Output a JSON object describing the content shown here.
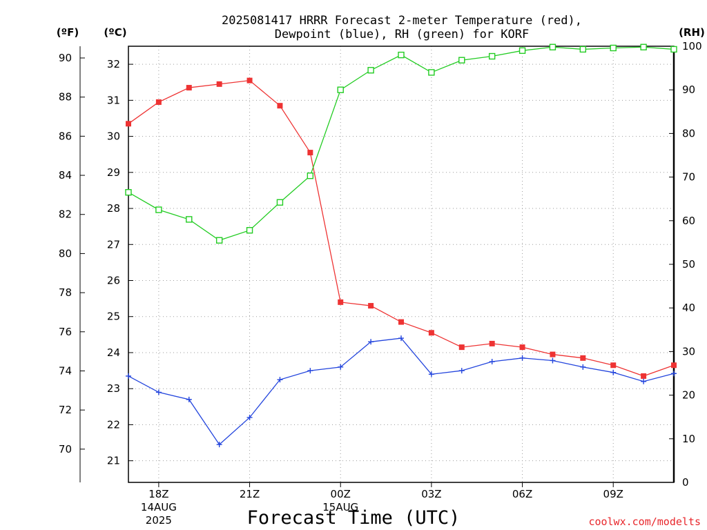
{
  "chart_data": {
    "type": "line",
    "title": [
      "2025081417 HRRR Forecast 2-meter Temperature (red),",
      "Dewpoint (blue), RH (green) for KORF"
    ],
    "xlabel": "Forecast Time (UTC)",
    "units": {
      "fahrenheit": "(ºF)",
      "celsius": "(ºC)",
      "rh": "(RH)"
    },
    "credit": "coolwx.com/modelts",
    "x_hours": [
      17,
      18,
      19,
      20,
      21,
      22,
      23,
      24,
      25,
      26,
      27,
      28,
      29,
      30,
      31,
      32,
      33,
      34,
      35
    ],
    "x_ticks": [
      {
        "hour": 18,
        "lines": [
          "18Z",
          "14AUG",
          "2025"
        ]
      },
      {
        "hour": 21,
        "lines": [
          "21Z"
        ]
      },
      {
        "hour": 24,
        "lines": [
          "00Z",
          "15AUG"
        ]
      },
      {
        "hour": 27,
        "lines": [
          "03Z"
        ]
      },
      {
        "hour": 30,
        "lines": [
          "06Z"
        ]
      },
      {
        "hour": 33,
        "lines": [
          "09Z"
        ]
      }
    ],
    "fahrenheit_axis": {
      "ticks": [
        70,
        72,
        74,
        76,
        78,
        80,
        82,
        84,
        86,
        88,
        90
      ],
      "range": [
        68.3,
        90.6
      ]
    },
    "celsius_axis": {
      "ticks": [
        21,
        22,
        23,
        24,
        25,
        26,
        27,
        28,
        29,
        30,
        31,
        32
      ],
      "range": [
        20.4,
        32.5
      ]
    },
    "rh_axis": {
      "ticks": [
        0,
        10,
        20,
        30,
        40,
        50,
        60,
        70,
        80,
        90,
        100
      ],
      "range": [
        0,
        100
      ]
    },
    "grid": true,
    "series": [
      {
        "name": "Temperature",
        "axis": "celsius",
        "color": "#ee3333",
        "marker": "filled-square",
        "values": [
          30.35,
          30.95,
          31.35,
          31.45,
          31.55,
          30.85,
          29.55,
          25.4,
          25.3,
          24.85,
          24.55,
          24.15,
          24.25,
          24.15,
          23.95,
          23.85,
          23.65,
          23.35,
          23.65
        ]
      },
      {
        "name": "Dewpoint",
        "axis": "celsius",
        "color": "#2244dd",
        "marker": "plus",
        "values": [
          23.35,
          22.9,
          22.7,
          21.45,
          22.2,
          23.25,
          23.5,
          23.6,
          24.3,
          24.4,
          23.4,
          23.5,
          23.75,
          23.85,
          23.78,
          23.6,
          23.45,
          23.2,
          23.42
        ]
      },
      {
        "name": "RH",
        "axis": "rh",
        "color": "#22cc22",
        "marker": "open-square",
        "values": [
          66.5,
          62.5,
          60.3,
          55.5,
          57.8,
          64.2,
          70.3,
          90.0,
          94.5,
          98.0,
          94.0,
          96.8,
          97.7,
          99.0,
          99.8,
          99.3,
          99.6,
          99.8,
          99.3
        ]
      }
    ]
  }
}
